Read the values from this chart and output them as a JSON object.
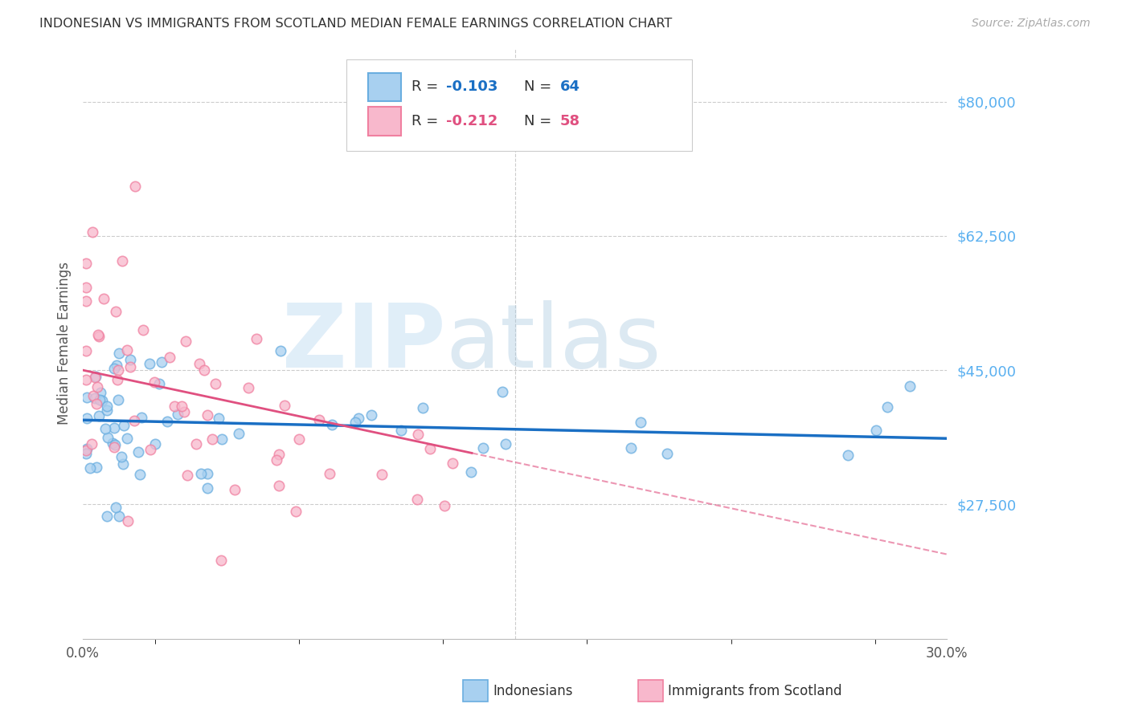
{
  "title": "INDONESIAN VS IMMIGRANTS FROM SCOTLAND MEDIAN FEMALE EARNINGS CORRELATION CHART",
  "source": "Source: ZipAtlas.com",
  "ylabel": "Median Female Earnings",
  "ytick_labels_right": [
    27500,
    45000,
    62500,
    80000
  ],
  "ytick_right_strs": [
    "$27,500",
    "$45,000",
    "$62,500",
    "$80,000"
  ],
  "xmin": 0.0,
  "xmax": 0.3,
  "ymin": 10000,
  "ymax": 87000,
  "legend_r1": "-0.103",
  "legend_n1": "64",
  "legend_r2": "-0.212",
  "legend_n2": "58",
  "color_indonesian_fill": "#a8d0f0",
  "color_indonesian_edge": "#6aaee0",
  "color_scotland_fill": "#f8b8cc",
  "color_scotland_edge": "#f080a0",
  "color_trend_blue": "#1a6fc4",
  "color_trend_pink": "#e05080",
  "color_axis_right": "#5ab0f0",
  "color_title": "#333333",
  "color_legend_r": "#1a6fc4",
  "color_legend_n": "#1a6fc4",
  "color_legend_r2": "#e05080",
  "color_legend_n2": "#e05080"
}
